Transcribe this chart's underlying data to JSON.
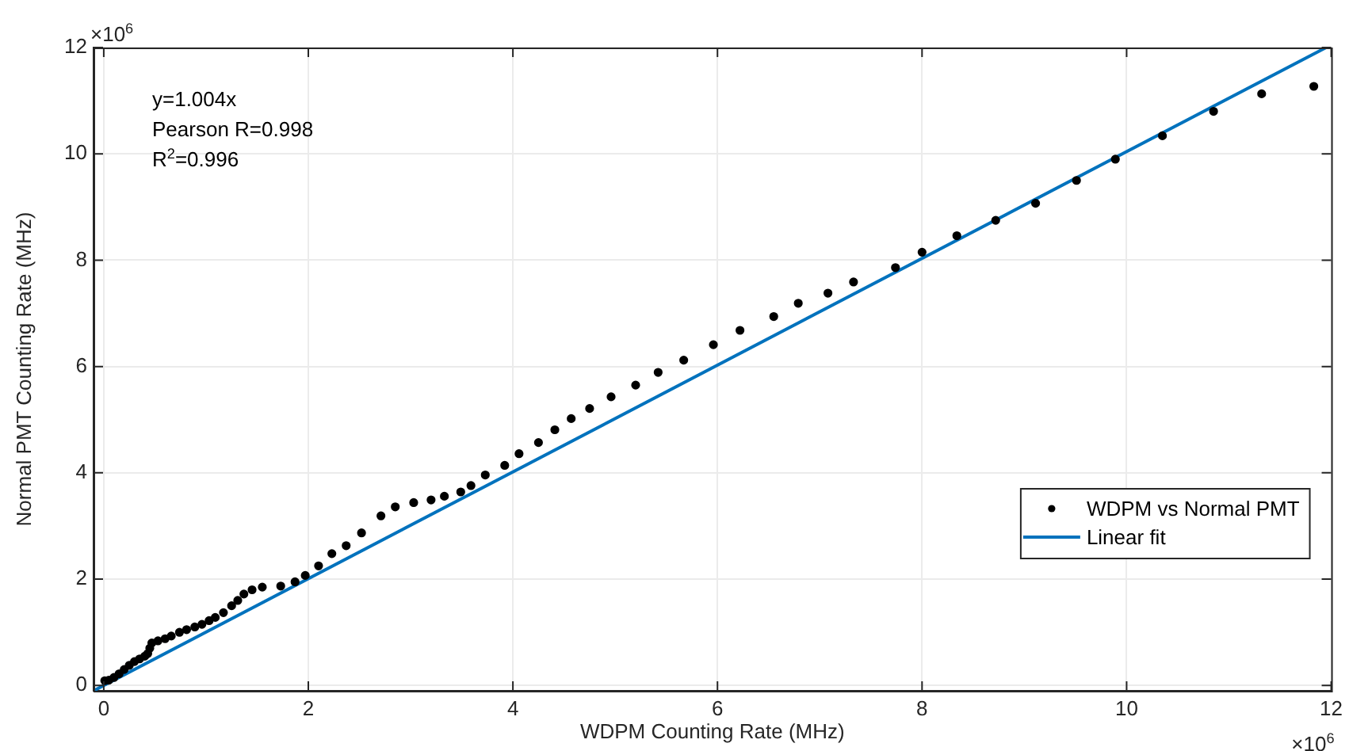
{
  "chart_data": {
    "type": "scatter",
    "xlabel": "WDPM Counting Rate (MHz)",
    "ylabel": "Normal PMT Counting Rate (MHz)",
    "xlim": [
      -0.1,
      12
    ],
    "ylim": [
      -0.1,
      12
    ],
    "xticks": [
      0,
      2,
      4,
      6,
      8,
      10,
      12
    ],
    "yticks": [
      0,
      2,
      4,
      6,
      8,
      10,
      12
    ],
    "grid": true,
    "legend": "bottom right",
    "marker": "circle",
    "annotations": [
      "y=1.004x",
      "Pearson R=0.998",
      "R$^{2}$=0.996",
      "×10$^{6}$",
      "×10$^{6}$"
    ],
    "series": [
      {
        "name": "WDPM vs Normal PMT",
        "type": "scatter",
        "color": "#000000",
        "x": [
          0.01,
          0.05,
          0.1,
          0.15,
          0.2,
          0.25,
          0.3,
          0.35,
          0.4,
          0.43,
          0.45,
          0.47,
          0.53,
          0.6,
          0.66,
          0.74,
          0.81,
          0.89,
          0.96,
          1.03,
          1.09,
          1.17,
          1.25,
          1.31,
          1.37,
          1.45,
          1.55,
          1.73,
          1.87,
          1.97,
          2.1,
          2.23,
          2.37,
          2.52,
          2.71,
          2.85,
          3.03,
          3.2,
          3.33,
          3.49,
          3.59,
          3.73,
          3.92,
          4.06,
          4.25,
          4.41,
          4.57,
          4.75,
          4.96,
          5.2,
          5.42,
          5.67,
          5.96,
          6.22,
          6.55,
          6.79,
          7.08,
          7.33,
          7.74,
          8.0,
          8.34,
          8.72,
          9.11,
          9.51,
          9.89,
          10.35,
          10.85,
          11.32,
          11.83
        ],
        "values": [
          0.09,
          0.1,
          0.15,
          0.22,
          0.3,
          0.38,
          0.45,
          0.5,
          0.55,
          0.6,
          0.7,
          0.8,
          0.84,
          0.88,
          0.93,
          1.0,
          1.05,
          1.1,
          1.15,
          1.22,
          1.28,
          1.37,
          1.5,
          1.6,
          1.72,
          1.8,
          1.85,
          1.87,
          1.95,
          2.07,
          2.25,
          2.48,
          2.63,
          2.87,
          3.19,
          3.36,
          3.44,
          3.49,
          3.56,
          3.64,
          3.76,
          3.96,
          4.14,
          4.36,
          4.57,
          4.81,
          5.02,
          5.21,
          5.43,
          5.65,
          5.89,
          6.12,
          6.41,
          6.68,
          6.94,
          7.19,
          7.38,
          7.59,
          7.86,
          8.15,
          8.46,
          8.75,
          9.07,
          9.5,
          9.9,
          10.34,
          10.8,
          11.13,
          11.27
        ]
      },
      {
        "name": "Linear fit",
        "type": "line",
        "color": "#0072bd",
        "line_style": "solid",
        "marker": "none",
        "x": [
          -0.1,
          11.95
        ],
        "values": [
          -0.1,
          12
        ]
      }
    ]
  }
}
